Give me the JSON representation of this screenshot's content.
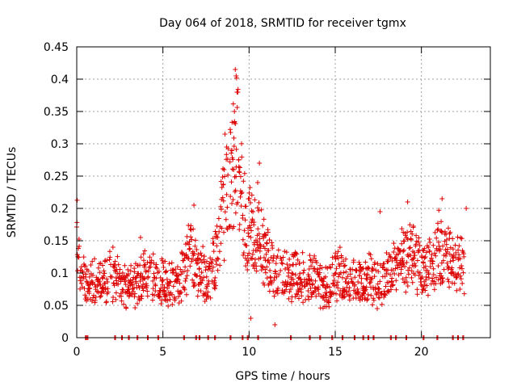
{
  "chart_data": {
    "type": "scatter",
    "title": "Day 064 of 2018, SRMTID for receiver tgmx",
    "xlabel": "GPS time / hours",
    "ylabel": "SRMTID / TECUs",
    "xlim": [
      0,
      24
    ],
    "ylim": [
      0,
      0.45
    ],
    "xticks": [
      0,
      5,
      10,
      15,
      20
    ],
    "yticks": [
      0,
      0.05,
      0.1,
      0.15,
      0.2,
      0.25,
      0.3,
      0.35,
      0.4,
      0.45
    ],
    "xtick_labels": [
      "0",
      "5",
      "10",
      "15",
      "20"
    ],
    "ytick_labels": [
      "0",
      "0.05",
      "0.1",
      "0.15",
      "0.2",
      "0.25",
      "0.3",
      "0.35",
      "0.4",
      "0.45"
    ],
    "grid": true,
    "marker": "+",
    "marker_color": "#dd0000",
    "series": [
      {
        "name": "SRMTID",
        "trend": [
          {
            "x": 0.0,
            "y": 0.17
          },
          {
            "x": 0.1,
            "y": 0.12
          },
          {
            "x": 0.25,
            "y": 0.09
          },
          {
            "x": 0.6,
            "y": 0.08
          },
          {
            "x": 1.0,
            "y": 0.085
          },
          {
            "x": 1.5,
            "y": 0.09
          },
          {
            "x": 2.0,
            "y": 0.1
          },
          {
            "x": 2.5,
            "y": 0.08
          },
          {
            "x": 3.0,
            "y": 0.075
          },
          {
            "x": 3.5,
            "y": 0.085
          },
          {
            "x": 4.0,
            "y": 0.095
          },
          {
            "x": 4.5,
            "y": 0.09
          },
          {
            "x": 5.0,
            "y": 0.085
          },
          {
            "x": 5.5,
            "y": 0.08
          },
          {
            "x": 6.0,
            "y": 0.085
          },
          {
            "x": 6.5,
            "y": 0.13
          },
          {
            "x": 7.0,
            "y": 0.11
          },
          {
            "x": 7.5,
            "y": 0.09
          },
          {
            "x": 8.0,
            "y": 0.12
          },
          {
            "x": 8.5,
            "y": 0.2
          },
          {
            "x": 8.9,
            "y": 0.23
          },
          {
            "x": 9.3,
            "y": 0.3
          },
          {
            "x": 9.7,
            "y": 0.19
          },
          {
            "x": 10.0,
            "y": 0.17
          },
          {
            "x": 10.5,
            "y": 0.16
          },
          {
            "x": 11.0,
            "y": 0.12
          },
          {
            "x": 11.5,
            "y": 0.1
          },
          {
            "x": 12.0,
            "y": 0.095
          },
          {
            "x": 12.5,
            "y": 0.1
          },
          {
            "x": 13.0,
            "y": 0.09
          },
          {
            "x": 13.5,
            "y": 0.095
          },
          {
            "x": 14.0,
            "y": 0.085
          },
          {
            "x": 14.5,
            "y": 0.08
          },
          {
            "x": 15.0,
            "y": 0.1
          },
          {
            "x": 15.5,
            "y": 0.095
          },
          {
            "x": 16.0,
            "y": 0.09
          },
          {
            "x": 16.5,
            "y": 0.085
          },
          {
            "x": 17.0,
            "y": 0.09
          },
          {
            "x": 17.5,
            "y": 0.085
          },
          {
            "x": 18.0,
            "y": 0.09
          },
          {
            "x": 18.5,
            "y": 0.11
          },
          {
            "x": 19.0,
            "y": 0.12
          },
          {
            "x": 19.5,
            "y": 0.13
          },
          {
            "x": 20.0,
            "y": 0.1
          },
          {
            "x": 20.5,
            "y": 0.11
          },
          {
            "x": 21.0,
            "y": 0.14
          },
          {
            "x": 21.5,
            "y": 0.12
          },
          {
            "x": 22.0,
            "y": 0.11
          },
          {
            "x": 22.5,
            "y": 0.12
          }
        ],
        "outliers": [
          {
            "x": 9.2,
            "y": 0.415
          },
          {
            "x": 9.25,
            "y": 0.405
          },
          {
            "x": 9.3,
            "y": 0.38
          },
          {
            "x": 9.15,
            "y": 0.35
          },
          {
            "x": 8.6,
            "y": 0.315
          },
          {
            "x": 8.7,
            "y": 0.295
          },
          {
            "x": 9.0,
            "y": 0.29
          },
          {
            "x": 9.4,
            "y": 0.275
          },
          {
            "x": 9.1,
            "y": 0.26
          },
          {
            "x": 8.55,
            "y": 0.26
          },
          {
            "x": 10.6,
            "y": 0.27
          },
          {
            "x": 10.5,
            "y": 0.24
          },
          {
            "x": 8.1,
            "y": 0.16
          },
          {
            "x": 6.8,
            "y": 0.205
          },
          {
            "x": 21.2,
            "y": 0.215
          },
          {
            "x": 19.2,
            "y": 0.21
          },
          {
            "x": 17.6,
            "y": 0.195
          },
          {
            "x": 22.6,
            "y": 0.2
          },
          {
            "x": 11.5,
            "y": 0.02
          },
          {
            "x": 10.1,
            "y": 0.03
          },
          {
            "x": 2.1,
            "y": 0.14
          },
          {
            "x": 3.7,
            "y": 0.155
          }
        ],
        "zero_times": [
          0.5,
          0.6,
          2.2,
          2.6,
          3.0,
          3.5,
          4.1,
          4.7,
          6.2,
          6.9,
          7.1,
          7.6,
          8.0,
          8.9,
          9.6,
          9.9,
          10.5,
          12.4,
          13.5,
          14.1,
          14.8,
          15.4,
          16.1,
          16.6,
          16.9,
          17.2,
          18.2,
          18.5,
          19.1,
          20.1,
          20.9,
          21.8,
          22.1,
          22.4
        ]
      }
    ]
  }
}
